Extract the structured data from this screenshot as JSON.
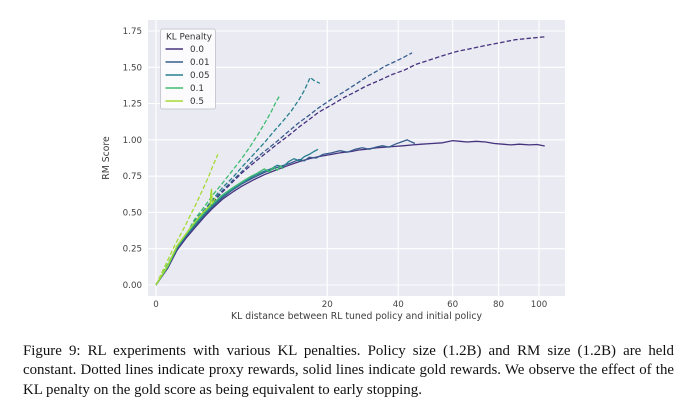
{
  "figure": {
    "caption": "Figure 9: RL experiments with various KL penalties. Policy size (1.2B) and RM size (1.2B) are held constant. Dotted lines indicate proxy rewards, solid lines indicate gold rewards. We observe the effect of the KL penalty on the gold score as being equivalent to early stopping."
  },
  "chart_data": {
    "type": "line",
    "title": "",
    "xlabel": "KL distance between RL tuned policy and initial policy",
    "ylabel": "RM Score",
    "x_scale": "sqrt",
    "xlim": [
      0,
      114
    ],
    "ylim": [
      -0.08,
      1.83
    ],
    "x_ticks": [
      0,
      20,
      40,
      60,
      80,
      100
    ],
    "y_ticks": [
      0.0,
      0.25,
      0.5,
      0.75,
      1.0,
      1.25,
      1.5,
      1.75
    ],
    "y_tick_labels": [
      "0.00",
      "0.25",
      "0.50",
      "0.75",
      "1.00",
      "1.25",
      "1.50",
      "1.75"
    ],
    "grid": "on",
    "plot_background": "#eaeaf2",
    "grid_color": "#ffffff",
    "legend": {
      "title": "KL Penalty",
      "position": "upper left"
    },
    "line_styles": {
      "proxy": "dashed",
      "gold": "solid"
    },
    "series": [
      {
        "name": "0.0",
        "color": "#46327e",
        "proxy": [
          [
            0,
            0
          ],
          [
            0.3,
            0.25
          ],
          [
            0.7,
            0.35
          ],
          [
            1,
            0.42
          ],
          [
            1.6,
            0.5
          ],
          [
            2.2,
            0.57
          ],
          [
            3,
            0.64
          ],
          [
            4,
            0.71
          ],
          [
            5,
            0.77
          ],
          [
            6.5,
            0.84
          ],
          [
            8,
            0.9
          ],
          [
            10,
            0.97
          ],
          [
            12,
            1.03
          ],
          [
            14,
            1.09
          ],
          [
            16,
            1.14
          ],
          [
            18,
            1.19
          ],
          [
            21,
            1.24
          ],
          [
            24,
            1.29
          ],
          [
            27,
            1.33
          ],
          [
            30,
            1.37
          ],
          [
            34,
            1.41
          ],
          [
            38,
            1.45
          ],
          [
            42,
            1.48
          ],
          [
            46,
            1.52
          ],
          [
            51,
            1.55
          ],
          [
            56,
            1.58
          ],
          [
            62,
            1.61
          ],
          [
            68,
            1.63
          ],
          [
            74,
            1.65
          ],
          [
            81,
            1.67
          ],
          [
            88,
            1.69
          ],
          [
            95,
            1.7
          ],
          [
            103,
            1.71
          ]
        ],
        "gold": [
          [
            0,
            0
          ],
          [
            0.1,
            0.12
          ],
          [
            0.3,
            0.24
          ],
          [
            0.6,
            0.32
          ],
          [
            1,
            0.39
          ],
          [
            1.6,
            0.47
          ],
          [
            2.2,
            0.53
          ],
          [
            3,
            0.59
          ],
          [
            4,
            0.64
          ],
          [
            5,
            0.68
          ],
          [
            6.5,
            0.725
          ],
          [
            8,
            0.76
          ],
          [
            10,
            0.795
          ],
          [
            12,
            0.825
          ],
          [
            14,
            0.85
          ],
          [
            16,
            0.87
          ],
          [
            18,
            0.885
          ],
          [
            20,
            0.895
          ],
          [
            23,
            0.91
          ],
          [
            26,
            0.92
          ],
          [
            28,
            0.93
          ],
          [
            30,
            0.935
          ],
          [
            33,
            0.945
          ],
          [
            36,
            0.95
          ],
          [
            39,
            0.955
          ],
          [
            42,
            0.96
          ],
          [
            45,
            0.965
          ],
          [
            48,
            0.97
          ],
          [
            52,
            0.975
          ],
          [
            56,
            0.98
          ],
          [
            60,
            0.995
          ],
          [
            63,
            0.99
          ],
          [
            66,
            0.985
          ],
          [
            70,
            0.99
          ],
          [
            74,
            0.985
          ],
          [
            78,
            0.975
          ],
          [
            82,
            0.97
          ],
          [
            86,
            0.965
          ],
          [
            90,
            0.97
          ],
          [
            95,
            0.965
          ],
          [
            99,
            0.968
          ],
          [
            103,
            0.958
          ]
        ]
      },
      {
        "name": "0.01",
        "color": "#365c8d",
        "proxy": [
          [
            0,
            0
          ],
          [
            0.3,
            0.25
          ],
          [
            0.7,
            0.36
          ],
          [
            1,
            0.43
          ],
          [
            1.6,
            0.51
          ],
          [
            2.2,
            0.58
          ],
          [
            3,
            0.65
          ],
          [
            4,
            0.72
          ],
          [
            5,
            0.78
          ],
          [
            6.5,
            0.86
          ],
          [
            8,
            0.92
          ],
          [
            10,
            0.99
          ],
          [
            12,
            1.06
          ],
          [
            14,
            1.12
          ],
          [
            16,
            1.17
          ],
          [
            18,
            1.22
          ],
          [
            21,
            1.28
          ],
          [
            24,
            1.33
          ],
          [
            27,
            1.38
          ],
          [
            30,
            1.43
          ],
          [
            33,
            1.47
          ],
          [
            36,
            1.51
          ],
          [
            39,
            1.54
          ],
          [
            42,
            1.57
          ],
          [
            44.7,
            1.6
          ]
        ],
        "gold": [
          [
            0,
            0
          ],
          [
            0.1,
            0.13
          ],
          [
            0.3,
            0.25
          ],
          [
            0.6,
            0.33
          ],
          [
            1,
            0.4
          ],
          [
            1.6,
            0.48
          ],
          [
            2.2,
            0.54
          ],
          [
            3,
            0.6
          ],
          [
            4,
            0.655
          ],
          [
            5,
            0.695
          ],
          [
            6.5,
            0.74
          ],
          [
            8,
            0.775
          ],
          [
            10,
            0.81
          ],
          [
            12,
            0.835
          ],
          [
            14,
            0.865
          ],
          [
            15,
            0.855
          ],
          [
            16,
            0.88
          ],
          [
            17.5,
            0.875
          ],
          [
            19,
            0.9
          ],
          [
            21,
            0.91
          ],
          [
            23,
            0.925
          ],
          [
            25,
            0.915
          ],
          [
            27,
            0.935
          ],
          [
            29,
            0.945
          ],
          [
            31,
            0.935
          ],
          [
            33,
            0.95
          ],
          [
            35,
            0.96
          ],
          [
            37,
            0.95
          ],
          [
            39,
            0.97
          ],
          [
            41,
            0.985
          ],
          [
            43,
            1.0
          ],
          [
            44,
            0.99
          ],
          [
            45.7,
            0.975
          ]
        ]
      },
      {
        "name": "0.05",
        "color": "#277f8e",
        "proxy": [
          [
            0,
            0
          ],
          [
            0.3,
            0.25
          ],
          [
            0.7,
            0.36
          ],
          [
            1,
            0.44
          ],
          [
            1.6,
            0.52
          ],
          [
            2.2,
            0.59
          ],
          [
            3,
            0.67
          ],
          [
            4,
            0.74
          ],
          [
            5,
            0.81
          ],
          [
            6.5,
            0.9
          ],
          [
            8,
            0.98
          ],
          [
            9.5,
            1.06
          ],
          [
            11,
            1.13
          ],
          [
            12.5,
            1.2
          ],
          [
            14,
            1.28
          ],
          [
            15,
            1.34
          ],
          [
            16.2,
            1.43
          ],
          [
            17,
            1.41
          ],
          [
            18.3,
            1.39
          ]
        ],
        "gold": [
          [
            0,
            0
          ],
          [
            0.1,
            0.13
          ],
          [
            0.3,
            0.26
          ],
          [
            0.6,
            0.34
          ],
          [
            1,
            0.41
          ],
          [
            1.6,
            0.49
          ],
          [
            2.2,
            0.55
          ],
          [
            3,
            0.61
          ],
          [
            4,
            0.66
          ],
          [
            5,
            0.7
          ],
          [
            6.5,
            0.75
          ],
          [
            8,
            0.785
          ],
          [
            9,
            0.8
          ],
          [
            10,
            0.825
          ],
          [
            11,
            0.815
          ],
          [
            12,
            0.85
          ],
          [
            13,
            0.87
          ],
          [
            14,
            0.855
          ],
          [
            15,
            0.885
          ],
          [
            16,
            0.9
          ],
          [
            17,
            0.92
          ],
          [
            17.9,
            0.935
          ]
        ]
      },
      {
        "name": "0.1",
        "color": "#3fbc71",
        "proxy": [
          [
            0,
            0
          ],
          [
            0.3,
            0.26
          ],
          [
            0.7,
            0.37
          ],
          [
            1,
            0.45
          ],
          [
            1.6,
            0.54
          ],
          [
            2.2,
            0.62
          ],
          [
            3,
            0.7
          ],
          [
            4,
            0.79
          ],
          [
            5,
            0.87
          ],
          [
            6,
            0.95
          ],
          [
            7,
            1.03
          ],
          [
            8,
            1.11
          ],
          [
            9,
            1.19
          ],
          [
            9.8,
            1.26
          ],
          [
            10.5,
            1.31
          ]
        ],
        "gold": [
          [
            0,
            0
          ],
          [
            0.1,
            0.13
          ],
          [
            0.3,
            0.26
          ],
          [
            0.6,
            0.345
          ],
          [
            1,
            0.42
          ],
          [
            1.6,
            0.5
          ],
          [
            2.2,
            0.56
          ],
          [
            3,
            0.62
          ],
          [
            4,
            0.67
          ],
          [
            5,
            0.71
          ],
          [
            6,
            0.745
          ],
          [
            7,
            0.77
          ],
          [
            8,
            0.8
          ],
          [
            8.8,
            0.78
          ],
          [
            9.4,
            0.81
          ],
          [
            10,
            0.79
          ],
          [
            10.6,
            0.82
          ],
          [
            11,
            0.8
          ]
        ]
      },
      {
        "name": "0.5",
        "color": "#a5db36",
        "proxy": [
          [
            0,
            0
          ],
          [
            0.25,
            0.28
          ],
          [
            0.5,
            0.38
          ],
          [
            0.8,
            0.48
          ],
          [
            1.1,
            0.56
          ],
          [
            1.5,
            0.66
          ],
          [
            1.9,
            0.75
          ],
          [
            2.2,
            0.82
          ],
          [
            2.6,
            0.9
          ]
        ],
        "gold": [
          [
            0,
            0
          ],
          [
            0.1,
            0.14
          ],
          [
            0.3,
            0.27
          ],
          [
            0.6,
            0.35
          ],
          [
            0.9,
            0.41
          ],
          [
            1.2,
            0.46
          ],
          [
            1.5,
            0.5
          ],
          [
            1.8,
            0.53
          ],
          [
            2.0,
            0.55
          ],
          [
            2.05,
            0.63
          ],
          [
            2.1,
            0.66
          ],
          [
            2.15,
            0.56
          ],
          [
            2.25,
            0.575
          ],
          [
            2.4,
            0.6
          ]
        ]
      }
    ]
  }
}
